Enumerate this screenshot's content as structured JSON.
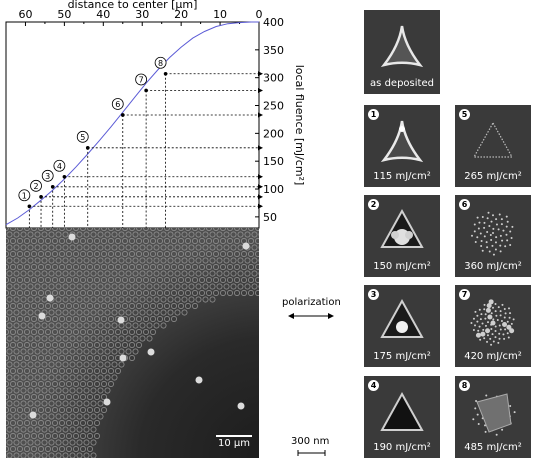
{
  "chart_data": {
    "type": "line",
    "xlabel": "distance to center  [µm]",
    "ylabel": "local fluence  [mJ/cm²]",
    "x_ticks": [
      60,
      50,
      40,
      30,
      20,
      10,
      0
    ],
    "y_ticks": [
      50,
      100,
      150,
      200,
      250,
      300,
      350,
      400
    ],
    "xlim": [
      65,
      0
    ],
    "ylim": [
      30,
      400
    ],
    "series": [
      {
        "x": [
          65,
          62,
          59,
          56,
          53,
          50,
          47,
          44,
          41,
          38,
          35,
          32,
          29,
          26,
          23,
          20,
          17,
          14,
          11,
          8,
          5,
          2,
          0
        ],
        "y": [
          36,
          48,
          63,
          80,
          98,
          118,
          140,
          163,
          187,
          212,
          238,
          264,
          290,
          314,
          336,
          355,
          371,
          383,
          392,
          397,
          399,
          400,
          400
        ]
      }
    ],
    "markers": [
      {
        "label": "1",
        "x": 59,
        "fluence": 69
      },
      {
        "label": "2",
        "x": 56,
        "fluence": 86
      },
      {
        "label": "3",
        "x": 53,
        "fluence": 104
      },
      {
        "label": "4",
        "x": 50,
        "fluence": 122
      },
      {
        "label": "5",
        "x": 44,
        "fluence": 174
      },
      {
        "label": "6",
        "x": 35,
        "fluence": 233
      },
      {
        "label": "7",
        "x": 29,
        "fluence": 277
      },
      {
        "label": "8",
        "x": 24,
        "fluence": 307
      }
    ]
  },
  "scalebar_micro": "10 µm",
  "polarization_label": "polarization",
  "scalebar_nano": "300 nm",
  "panels": [
    {
      "badge": "",
      "label": "as deposited",
      "stage": 0
    },
    {
      "badge": "1",
      "label": "115 mJ/cm²",
      "stage": 1
    },
    {
      "badge": "5",
      "label": "265 mJ/cm²",
      "stage": 5
    },
    {
      "badge": "2",
      "label": "150 mJ/cm²",
      "stage": 2
    },
    {
      "badge": "6",
      "label": "360 mJ/cm²",
      "stage": 6
    },
    {
      "badge": "3",
      "label": "175 mJ/cm²",
      "stage": 3
    },
    {
      "badge": "7",
      "label": "420 mJ/cm²",
      "stage": 7
    },
    {
      "badge": "4",
      "label": "190 mJ/cm²",
      "stage": 4
    },
    {
      "badge": "8",
      "label": "485 mJ/cm²",
      "stage": 8
    }
  ],
  "colors": {
    "curve": "#5b5bd6",
    "sem_bg": "#3a3a3a",
    "rim": "#e6e6e6"
  }
}
